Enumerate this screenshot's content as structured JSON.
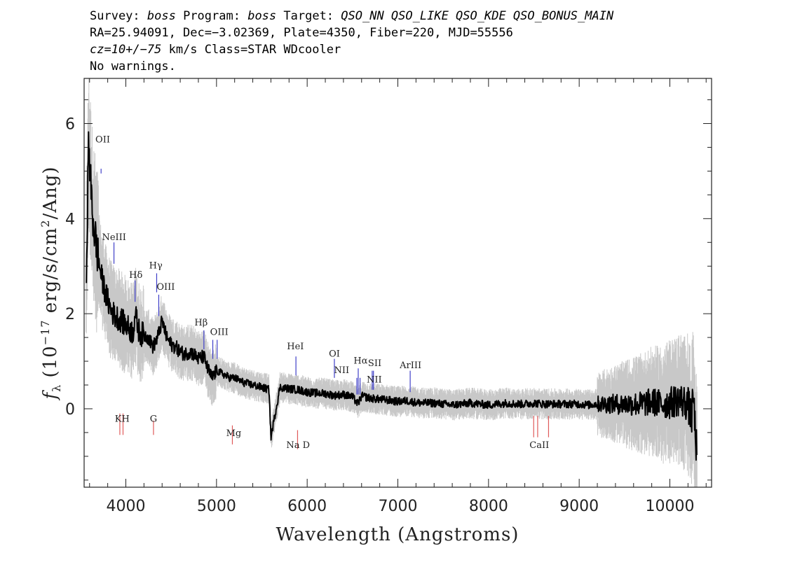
{
  "header": {
    "line1": {
      "p1": "Survey: ",
      "survey": "boss",
      "p2": " Program: ",
      "program": "boss",
      "p3": " Target: ",
      "target": "QSO_NN QSO_LIKE QSO_KDE QSO_BONUS_MAIN"
    },
    "line2": "RA=25.94091, Dec=−3.02369, Plate=4350, Fiber=220, MJD=55556",
    "line3": {
      "cz": "cz=10+/−75",
      "rest": " km/s Class=STAR WDcooler"
    },
    "line4": "No warnings."
  },
  "chart_data": {
    "type": "line",
    "title": "",
    "xlabel": "Wavelength (Angstroms)",
    "ylabel": "fλ (10⁻¹⁷ erg/s/cm²/Ang)",
    "xlim": [
      3540,
      10460
    ],
    "ylim": [
      -1.65,
      6.95
    ],
    "x_ticks": [
      4000,
      5000,
      6000,
      7000,
      8000,
      9000,
      10000
    ],
    "y_ticks": [
      0,
      2,
      4,
      6
    ],
    "grid": false,
    "series": [
      {
        "role": "flux-smoothed",
        "color": "#000000",
        "x": [
          3565,
          3590,
          3610,
          3640,
          3670,
          3700,
          3740,
          3780,
          3830,
          3880,
          3930,
          3980,
          4030,
          4080,
          4100,
          4150,
          4200,
          4250,
          4300,
          4350,
          4400,
          4450,
          4500,
          4550,
          4600,
          4650,
          4700,
          4750,
          4800,
          4860,
          4900,
          4950,
          5000,
          5050,
          5100,
          5150,
          5200,
          5300,
          5400,
          5500,
          5580,
          5600,
          5700,
          5800,
          5900,
          6000,
          6100,
          6200,
          6300,
          6400,
          6500,
          6560,
          6600,
          6700,
          6800,
          6900,
          7000,
          7100,
          7200,
          7300,
          7400,
          7500,
          7600,
          7700,
          7800,
          7900,
          8000,
          8100,
          8200,
          8300,
          8400,
          8500,
          8600,
          8700,
          8800,
          8900,
          9000,
          9100,
          9200,
          9300,
          9400,
          9500,
          9600,
          9700,
          9800,
          9900,
          10000,
          10100,
          10200,
          10240,
          10260,
          10280,
          10300
        ],
        "y": [
          3.0,
          5.6,
          4.8,
          3.9,
          3.5,
          3.1,
          2.7,
          2.4,
          2.1,
          1.95,
          1.9,
          1.8,
          1.7,
          1.6,
          2.0,
          1.6,
          1.55,
          1.5,
          1.3,
          1.5,
          1.85,
          1.5,
          1.35,
          1.3,
          1.2,
          1.15,
          1.2,
          1.15,
          1.05,
          1.1,
          0.85,
          0.65,
          0.8,
          0.75,
          0.7,
          0.65,
          0.65,
          0.55,
          0.5,
          0.45,
          0.4,
          -0.6,
          0.45,
          0.42,
          0.4,
          0.35,
          0.33,
          0.32,
          0.28,
          0.3,
          0.25,
          0.1,
          0.27,
          0.22,
          0.2,
          0.18,
          0.15,
          0.17,
          0.13,
          0.12,
          0.12,
          0.1,
          0.08,
          0.1,
          0.12,
          0.1,
          0.08,
          0.1,
          0.12,
          0.1,
          0.1,
          0.12,
          0.1,
          0.1,
          0.1,
          0.1,
          0.1,
          0.08,
          0.1,
          0.1,
          0.1,
          0.1,
          0.1,
          0.1,
          0.15,
          0.1,
          0.12,
          0.2,
          0.1,
          -0.2,
          0.3,
          -0.5,
          -1.0
        ]
      }
    ],
    "emission_lines": [
      {
        "label": "OII",
        "wavelength": 3727,
        "y_top": 5.05,
        "y_bottom": 4.95,
        "color": "#3f3fc8"
      },
      {
        "label": "NeIII",
        "wavelength": 3869,
        "y_top": 3.5,
        "y_bottom": 3.05,
        "color": "#3f3fc8"
      },
      {
        "label": "Hδ",
        "wavelength": 4102,
        "y_top": 2.7,
        "y_bottom": 2.25,
        "color": "#3f3fc8"
      },
      {
        "label": "Hγ",
        "wavelength": 4340,
        "y_top": 2.85,
        "y_bottom": 2.45,
        "color": "#3f3fc8"
      },
      {
        "label": "OIII",
        "wavelength": 4363,
        "y_top": 2.4,
        "y_bottom": 1.95,
        "color": "#3f3fc8"
      },
      {
        "label": "Hβ",
        "wavelength": 4861,
        "y_top": 1.65,
        "y_bottom": 1.25,
        "color": "#3f3fc8"
      },
      {
        "label": "OIII",
        "wavelength": 4959,
        "y_top": 1.45,
        "y_bottom": 1.05,
        "color": "#3f3fc8"
      },
      {
        "label": "OIII",
        "wavelength": 5007,
        "y_top": 1.45,
        "y_bottom": 1.05,
        "color": "#3f3fc8"
      },
      {
        "label": "HeI",
        "wavelength": 5876,
        "y_top": 1.1,
        "y_bottom": 0.7,
        "color": "#3f3fc8"
      },
      {
        "label": "OI",
        "wavelength": 6300,
        "y_top": 1.05,
        "y_bottom": 0.65,
        "color": "#3f3fc8"
      },
      {
        "label": "NII",
        "wavelength": 6548,
        "y_top": 0.65,
        "y_bottom": 0.3,
        "color": "#3f3fc8"
      },
      {
        "label": "Hα",
        "wavelength": 6563,
        "y_top": 0.85,
        "y_bottom": 0.3,
        "color": "#3f3fc8"
      },
      {
        "label": "NII",
        "wavelength": 6583,
        "y_top": 0.65,
        "y_bottom": 0.3,
        "color": "#3f3fc8"
      },
      {
        "label": "SII",
        "wavelength": 6717,
        "y_top": 0.8,
        "y_bottom": 0.4,
        "color": "#3f3fc8"
      },
      {
        "label": "SII",
        "wavelength": 6731,
        "y_top": 0.8,
        "y_bottom": 0.4,
        "color": "#3f3fc8"
      },
      {
        "label": "ArIII",
        "wavelength": 7136,
        "y_top": 0.8,
        "y_bottom": 0.35,
        "color": "#3f3fc8"
      }
    ],
    "emission_labels": [
      {
        "text": "OII",
        "x": 3745,
        "y": 5.6
      },
      {
        "text": "NeIII",
        "x": 3870,
        "y": 3.55
      },
      {
        "text": "Hδ",
        "x": 4110,
        "y": 2.75
      },
      {
        "text": "Hγ",
        "x": 4330,
        "y": 2.95
      },
      {
        "text": "OIII",
        "x": 4440,
        "y": 2.5
      },
      {
        "text": "Hβ",
        "x": 4830,
        "y": 1.75
      },
      {
        "text": "OIII",
        "x": 5030,
        "y": 1.55
      },
      {
        "text": "HeI",
        "x": 5870,
        "y": 1.25
      },
      {
        "text": "OI",
        "x": 6300,
        "y": 1.1
      },
      {
        "text": "NII",
        "x": 6380,
        "y": 0.75
      },
      {
        "text": "Hα",
        "x": 6590,
        "y": 0.95
      },
      {
        "text": "SII",
        "x": 6745,
        "y": 0.9
      },
      {
        "text": "NII",
        "x": 6740,
        "y": 0.55
      },
      {
        "text": "ArIII",
        "x": 7140,
        "y": 0.85
      }
    ],
    "absorption_lines": [
      {
        "label": "K",
        "wavelength": 3934,
        "y_top": -0.55,
        "y_bottom": -0.1,
        "color": "#e05a5a"
      },
      {
        "label": "H",
        "wavelength": 3969,
        "y_top": -0.55,
        "y_bottom": -0.1,
        "color": "#e05a5a"
      },
      {
        "label": "G",
        "wavelength": 4305,
        "y_top": -0.55,
        "y_bottom": -0.25,
        "color": "#e05a5a"
      },
      {
        "label": "Mg",
        "wavelength": 5175,
        "y_top": -0.75,
        "y_bottom": -0.35,
        "color": "#e05a5a"
      },
      {
        "label": "Na",
        "wavelength": 5894,
        "y_top": -0.85,
        "y_bottom": -0.45,
        "color": "#e05a5a"
      },
      {
        "label": "CaII",
        "wavelength": 8498,
        "y_top": -0.6,
        "y_bottom": -0.15,
        "color": "#e05a5a"
      },
      {
        "label": "CaII",
        "wavelength": 8542,
        "y_top": -0.6,
        "y_bottom": -0.15,
        "color": "#e05a5a"
      },
      {
        "label": "CaII",
        "wavelength": 8662,
        "y_top": -0.6,
        "y_bottom": -0.15,
        "color": "#e05a5a"
      }
    ],
    "absorption_labels": [
      {
        "text": "KH",
        "x": 3960,
        "y": -0.1
      },
      {
        "text": "G",
        "x": 4305,
        "y": -0.1
      },
      {
        "text": "Mg",
        "x": 5190,
        "y": -0.4
      },
      {
        "text": "Na D",
        "x": 5900,
        "y": -0.65
      },
      {
        "text": "CaII",
        "x": 8560,
        "y": -0.65
      }
    ],
    "colors": {
      "flux": "#000000",
      "noise": "#c8c8c8",
      "emission": "#3f3fc8",
      "absorption": "#e05a5a"
    }
  }
}
